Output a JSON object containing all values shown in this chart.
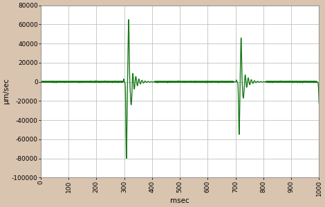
{
  "title": "",
  "xlabel": "msec",
  "ylabel": "μm/sec",
  "xlim": [
    0,
    1000
  ],
  "ylim": [
    -100000,
    80000
  ],
  "xticks": [
    0,
    100,
    200,
    300,
    400,
    500,
    600,
    700,
    800,
    900,
    1000
  ],
  "yticks": [
    -100000,
    -80000,
    -60000,
    -40000,
    -20000,
    0,
    20000,
    40000,
    60000,
    80000
  ],
  "line_color": "#1a7a1a",
  "background_color": "#d9c4b0",
  "plot_bg_color": "#ffffff",
  "grid_color": "#b0b8b0",
  "line_width": 1.0,
  "tick_fontsize": 6.5,
  "label_fontsize": 7.5
}
